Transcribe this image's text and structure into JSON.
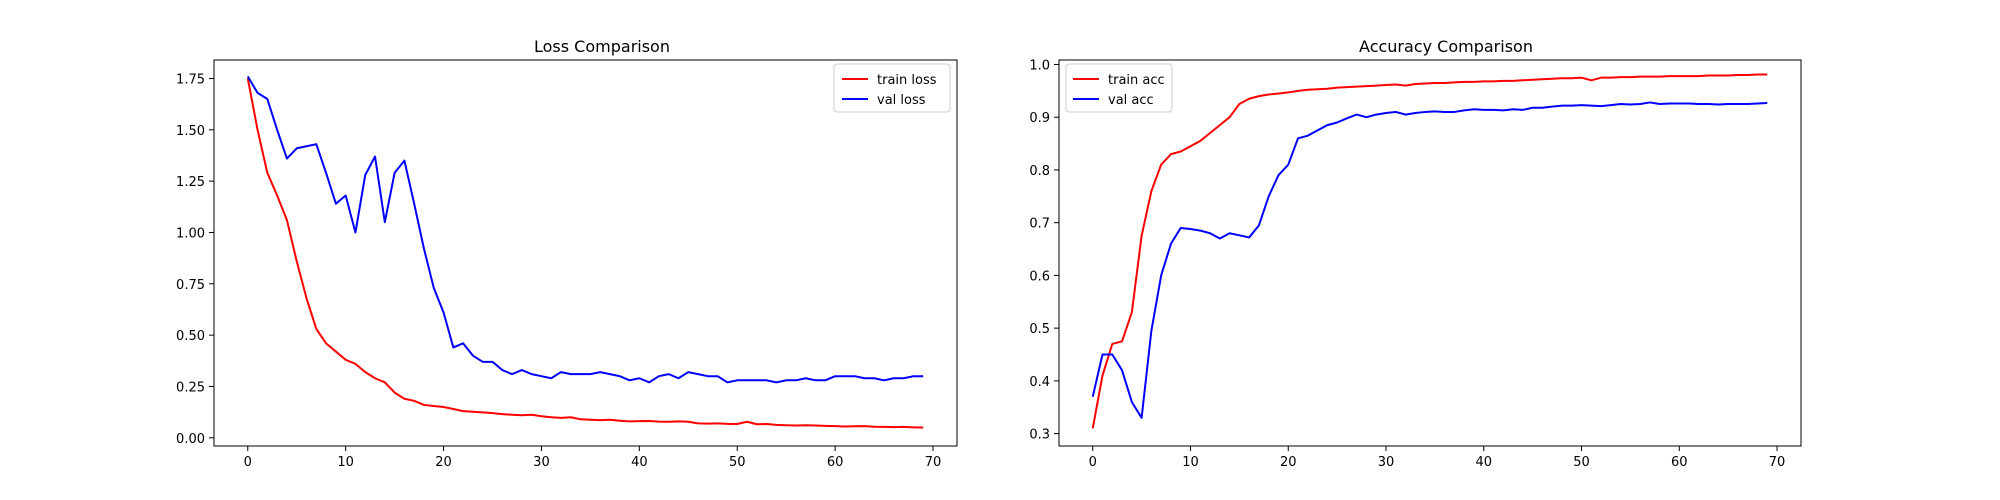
{
  "chart_data": [
    {
      "type": "line",
      "title": "Loss Comparison",
      "xlabel": "",
      "ylabel": "",
      "xlim": [
        -3.45,
        72.45
      ],
      "ylim": [
        -0.04,
        1.84
      ],
      "xticks": [
        0,
        10,
        20,
        30,
        40,
        50,
        60,
        70
      ],
      "yticks": [
        0.0,
        0.25,
        0.5,
        0.75,
        1.0,
        1.25,
        1.5,
        1.75
      ],
      "ytick_labels": [
        "0.00",
        "0.25",
        "0.50",
        "0.75",
        "1.00",
        "1.25",
        "1.50",
        "1.75"
      ],
      "grid": false,
      "legend": "upper right",
      "x": [
        0,
        1,
        2,
        3,
        4,
        5,
        6,
        7,
        8,
        9,
        10,
        11,
        12,
        13,
        14,
        15,
        16,
        17,
        18,
        19,
        20,
        21,
        22,
        23,
        24,
        25,
        26,
        27,
        28,
        29,
        30,
        31,
        32,
        33,
        34,
        35,
        36,
        37,
        38,
        39,
        40,
        41,
        42,
        43,
        44,
        45,
        46,
        47,
        48,
        49,
        50,
        51,
        52,
        53,
        54,
        55,
        56,
        57,
        58,
        59,
        60,
        61,
        62,
        63,
        64,
        65,
        66,
        67,
        68,
        69
      ],
      "series": [
        {
          "name": "train loss",
          "color": "#ff0000",
          "values": [
            1.75,
            1.5,
            1.29,
            1.18,
            1.06,
            0.86,
            0.68,
            0.53,
            0.46,
            0.42,
            0.38,
            0.36,
            0.32,
            0.29,
            0.27,
            0.22,
            0.19,
            0.18,
            0.16,
            0.155,
            0.15,
            0.14,
            0.13,
            0.127,
            0.124,
            0.12,
            0.115,
            0.112,
            0.11,
            0.112,
            0.105,
            0.1,
            0.097,
            0.1,
            0.09,
            0.088,
            0.086,
            0.088,
            0.083,
            0.08,
            0.081,
            0.082,
            0.079,
            0.078,
            0.08,
            0.078,
            0.07,
            0.069,
            0.07,
            0.068,
            0.067,
            0.078,
            0.066,
            0.067,
            0.063,
            0.061,
            0.06,
            0.061,
            0.06,
            0.058,
            0.057,
            0.055,
            0.056,
            0.057,
            0.054,
            0.053,
            0.052,
            0.053,
            0.051,
            0.05
          ]
        },
        {
          "name": "val loss",
          "color": "#0000ff",
          "values": [
            1.76,
            1.68,
            1.65,
            1.5,
            1.36,
            1.41,
            1.42,
            1.43,
            1.29,
            1.14,
            1.18,
            1.0,
            1.28,
            1.37,
            1.05,
            1.29,
            1.35,
            1.14,
            0.92,
            0.73,
            0.61,
            0.44,
            0.46,
            0.4,
            0.37,
            0.37,
            0.33,
            0.31,
            0.33,
            0.31,
            0.3,
            0.29,
            0.32,
            0.31,
            0.31,
            0.31,
            0.32,
            0.31,
            0.3,
            0.28,
            0.29,
            0.27,
            0.3,
            0.31,
            0.29,
            0.32,
            0.31,
            0.3,
            0.3,
            0.27,
            0.28,
            0.28,
            0.28,
            0.28,
            0.27,
            0.28,
            0.28,
            0.29,
            0.28,
            0.28,
            0.3,
            0.3,
            0.3,
            0.29,
            0.29,
            0.28,
            0.29,
            0.29,
            0.3,
            0.3
          ]
        }
      ]
    },
    {
      "type": "line",
      "title": "Accuracy Comparison",
      "xlabel": "",
      "ylabel": "",
      "xlim": [
        -3.45,
        72.45
      ],
      "ylim": [
        0.2765,
        1.0085
      ],
      "xticks": [
        0,
        10,
        20,
        30,
        40,
        50,
        60,
        70
      ],
      "yticks": [
        0.3,
        0.4,
        0.5,
        0.6,
        0.7,
        0.8,
        0.9,
        1.0
      ],
      "ytick_labels": [
        "0.3",
        "0.4",
        "0.5",
        "0.6",
        "0.7",
        "0.8",
        "0.9",
        "1.0"
      ],
      "grid": false,
      "legend": "upper left",
      "x": [
        0,
        1,
        2,
        3,
        4,
        5,
        6,
        7,
        8,
        9,
        10,
        11,
        12,
        13,
        14,
        15,
        16,
        17,
        18,
        19,
        20,
        21,
        22,
        23,
        24,
        25,
        26,
        27,
        28,
        29,
        30,
        31,
        32,
        33,
        34,
        35,
        36,
        37,
        38,
        39,
        40,
        41,
        42,
        43,
        44,
        45,
        46,
        47,
        48,
        49,
        50,
        51,
        52,
        53,
        54,
        55,
        56,
        57,
        58,
        59,
        60,
        61,
        62,
        63,
        64,
        65,
        66,
        67,
        68,
        69
      ],
      "series": [
        {
          "name": "train acc",
          "color": "#ff0000",
          "values": [
            0.31,
            0.41,
            0.47,
            0.475,
            0.53,
            0.675,
            0.76,
            0.81,
            0.83,
            0.835,
            0.845,
            0.855,
            0.87,
            0.885,
            0.9,
            0.925,
            0.935,
            0.94,
            0.943,
            0.945,
            0.947,
            0.95,
            0.952,
            0.953,
            0.954,
            0.956,
            0.957,
            0.958,
            0.959,
            0.96,
            0.961,
            0.962,
            0.96,
            0.963,
            0.964,
            0.965,
            0.965,
            0.966,
            0.967,
            0.967,
            0.968,
            0.968,
            0.969,
            0.969,
            0.97,
            0.971,
            0.972,
            0.973,
            0.974,
            0.974,
            0.975,
            0.97,
            0.975,
            0.975,
            0.976,
            0.976,
            0.977,
            0.977,
            0.977,
            0.978,
            0.978,
            0.978,
            0.978,
            0.979,
            0.979,
            0.979,
            0.98,
            0.98,
            0.981,
            0.981
          ]
        },
        {
          "name": "val acc",
          "color": "#0000ff",
          "values": [
            0.37,
            0.45,
            0.45,
            0.42,
            0.36,
            0.33,
            0.495,
            0.6,
            0.66,
            0.69,
            0.688,
            0.685,
            0.68,
            0.67,
            0.68,
            0.676,
            0.672,
            0.695,
            0.75,
            0.79,
            0.81,
            0.86,
            0.865,
            0.875,
            0.885,
            0.89,
            0.898,
            0.905,
            0.9,
            0.905,
            0.908,
            0.91,
            0.905,
            0.908,
            0.91,
            0.911,
            0.91,
            0.91,
            0.913,
            0.915,
            0.914,
            0.914,
            0.913,
            0.915,
            0.914,
            0.918,
            0.918,
            0.92,
            0.922,
            0.922,
            0.923,
            0.922,
            0.921,
            0.923,
            0.925,
            0.924,
            0.925,
            0.928,
            0.925,
            0.926,
            0.926,
            0.926,
            0.925,
            0.925,
            0.924,
            0.925,
            0.925,
            0.925,
            0.926,
            0.927
          ]
        }
      ]
    }
  ]
}
